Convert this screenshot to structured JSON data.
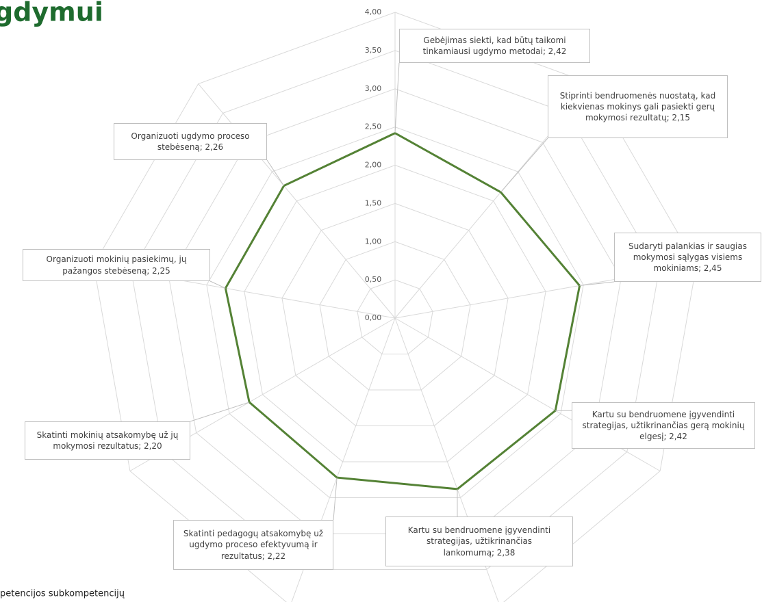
{
  "chart_data": {
    "type": "radar",
    "title": "gdymui",
    "caption": "petencijos subkompetencijų",
    "categories": [
      "Gebėjimas siekti, kad būtų taikomi tinkamiausi ugdymo metodai;",
      "Stiprinti bendruomenės nuostatą, kad kiekvienas mokinys gali pasiekti gerų mokymosi rezultatų;",
      "Sudaryti palankias ir saugias mokymosi sąlygas visiems mokiniams;",
      "Kartu su bendruomene įgyvendinti strategijas, užtikrinančias gerą mokinių elgesį;",
      "Kartu su bendruomene įgyvendinti strategijas, užtikrinančias lankomumą;",
      "Skatinti pedagogų atsakomybę už ugdymo proceso efektyvumą ir rezultatus;",
      "Skatinti mokinių atsakomybę už jų mokymosi rezultatus;",
      "Organizuoti mokinių pasiekimų, jų pažangos stebėseną;",
      "Organizuoti ugdymo proceso stebėseną;"
    ],
    "values": [
      2.42,
      2.15,
      2.45,
      2.42,
      2.38,
      2.22,
      2.2,
      2.25,
      2.26
    ],
    "value_labels": [
      "2,42",
      "2,15",
      "2,45",
      "2,42",
      "2,38",
      "2,22",
      "2,20",
      "2,25",
      "2,26"
    ],
    "color": "#548235",
    "ylim": [
      0,
      4
    ],
    "yticks": [
      {
        "value": 0,
        "label": "0,00"
      },
      {
        "value": 0.5,
        "label": "0,50"
      },
      {
        "value": 1,
        "label": "1,00"
      },
      {
        "value": 1.5,
        "label": "1,50"
      },
      {
        "value": 2,
        "label": "2,00"
      },
      {
        "value": 2.5,
        "label": "2,50"
      },
      {
        "value": 3,
        "label": "3,00"
      },
      {
        "value": 3.5,
        "label": "3,50"
      },
      {
        "value": 4,
        "label": "4,00"
      }
    ],
    "grid": true
  }
}
